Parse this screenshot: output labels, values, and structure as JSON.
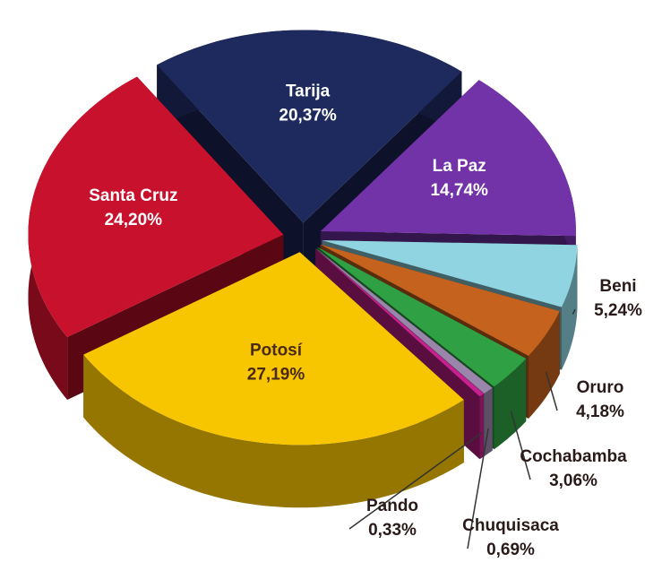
{
  "chart_data": {
    "type": "pie3d",
    "categories": [
      "Tarija",
      "La Paz",
      "Beni",
      "Oruro",
      "Cochabamba",
      "Chuquisaca",
      "Pando",
      "Potosí",
      "Santa Cruz"
    ],
    "values": [
      20.37,
      14.74,
      5.24,
      4.18,
      3.06,
      0.69,
      0.33,
      27.19,
      24.2
    ],
    "value_labels": [
      "20,37%",
      "14,74%",
      "5,24%",
      "4,18%",
      "3,06%",
      "0,69%",
      "0,33%",
      "27,19%",
      "24,20%"
    ],
    "colors": [
      "#1e2a5e",
      "#7232a8",
      "#8fd4e0",
      "#c4621e",
      "#2fa043",
      "#9b86ab",
      "#c8208e",
      "#f7c600",
      "#c8112c"
    ]
  }
}
